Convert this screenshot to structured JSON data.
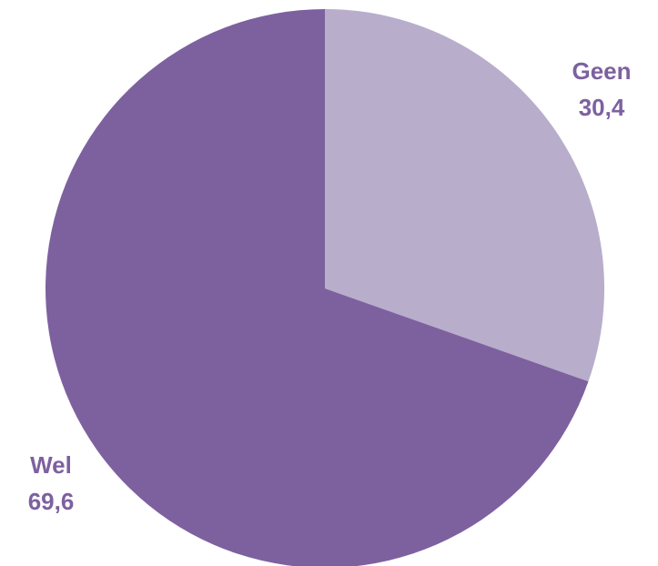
{
  "chart_data": {
    "type": "pie",
    "title": "",
    "start_angle_deg": 0,
    "direction": "clockwise",
    "slices": [
      {
        "label": "Geen",
        "value_label": "30,4",
        "value": 30.4,
        "color": "#B8ADCB"
      },
      {
        "label": "Wel",
        "value_label": "69,6",
        "value": 69.6,
        "color": "#7D619F"
      }
    ],
    "label_color": "#7D619F",
    "legend": "none",
    "data_labels": "outside"
  }
}
